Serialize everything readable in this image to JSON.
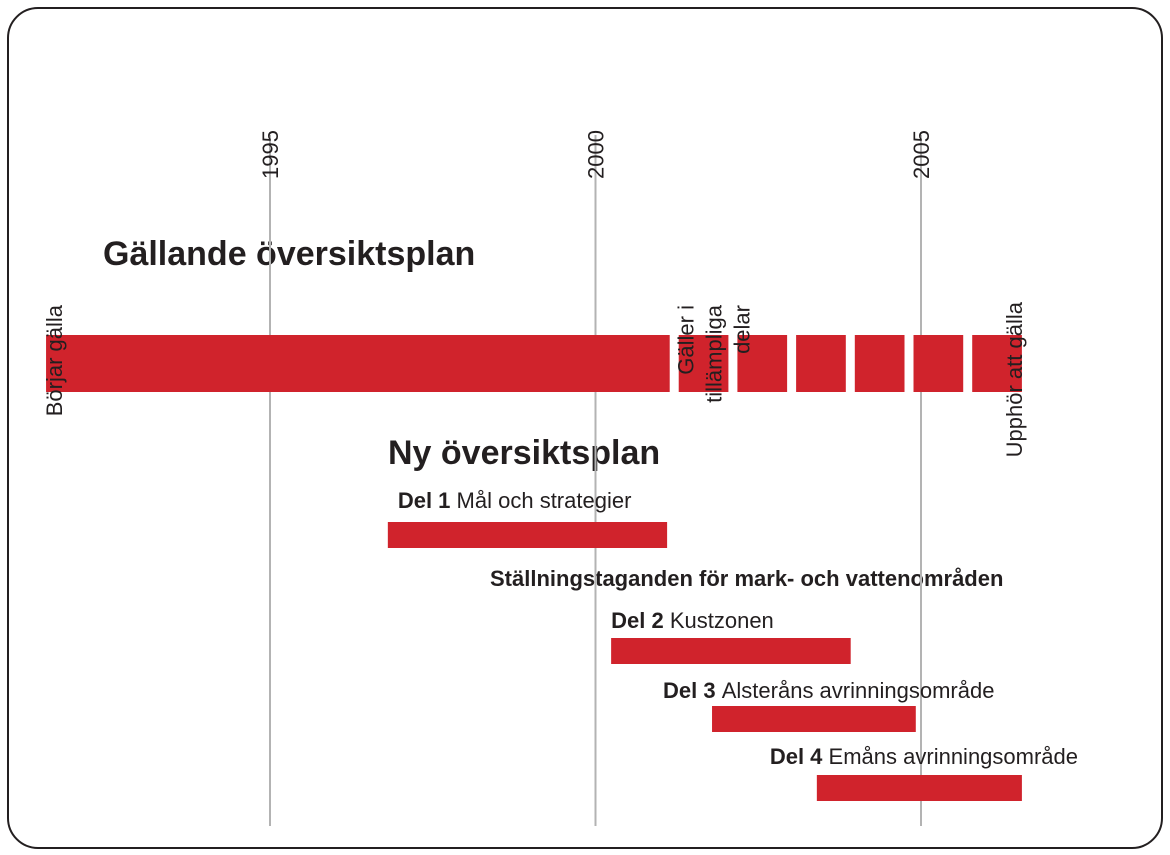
{
  "chart_data": {
    "type": "timeline",
    "xlim": [
      1991,
      2007
    ],
    "xticks": [
      1995,
      2000,
      2005
    ],
    "grid": true,
    "color": "#d0232c",
    "current_plan": {
      "label": "Gällande översiktsplan",
      "start": 1991.56,
      "end": 2001.14,
      "partial_end": 2006.55,
      "annotations": {
        "start": "Börjar gälla",
        "partial": [
          "Gäller i",
          "tillämpliga",
          "delar"
        ],
        "end": "Upphör att gälla"
      }
    },
    "new_plan": {
      "label": "Ny översiktsplan",
      "group_label": "Ställningstaganden för mark- och vattenområden",
      "parts": [
        {
          "part": "Del 1",
          "name": "Mål och strategier",
          "start": 1996.81,
          "end": 2001.1
        },
        {
          "part": "Del 2",
          "name": "Kustzonen",
          "start": 2000.24,
          "end": 2003.92
        },
        {
          "part": "Del 3",
          "name": "Alsteråns avrinningsområde",
          "start": 2001.79,
          "end": 2004.92
        },
        {
          "part": "Del 4",
          "name": "Emåns avrinningsområde",
          "start": 2003.4,
          "end": 2006.55
        }
      ]
    }
  }
}
